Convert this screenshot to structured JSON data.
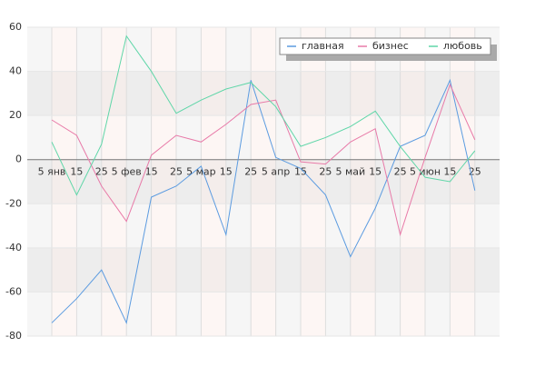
{
  "chart_data": {
    "type": "line",
    "categories": [
      "5 янв",
      "15",
      "25",
      "5 фев",
      "15",
      "25",
      "5 мар",
      "15",
      "25",
      "5 апр",
      "15",
      "25",
      "5 май",
      "15",
      "25",
      "5 июн",
      "15",
      "25"
    ],
    "series": [
      {
        "name": "главная",
        "color": "#5b9be0",
        "values": [
          -74,
          -63,
          -50,
          -74,
          -17,
          -12,
          -3,
          -34,
          36,
          1,
          -4,
          -16,
          -44,
          -22,
          6,
          11,
          36,
          -14
        ]
      },
      {
        "name": "бизнес",
        "color": "#e87aa8",
        "values": [
          18,
          11,
          -12,
          -28,
          2,
          11,
          8,
          16,
          25,
          27,
          -1,
          -2,
          8,
          14,
          -34,
          1,
          34,
          9
        ]
      },
      {
        "name": "любовь",
        "color": "#5fd6a8",
        "values": [
          8,
          -16,
          7,
          56,
          40,
          21,
          27,
          32,
          35,
          24,
          6,
          10,
          15,
          22,
          6,
          -8,
          -10,
          4
        ]
      }
    ],
    "ylim": [
      -80,
      60
    ],
    "yticks": [
      -80,
      -60,
      -40,
      -20,
      0,
      20,
      40,
      60
    ],
    "grid": true,
    "legend": "top-right"
  }
}
